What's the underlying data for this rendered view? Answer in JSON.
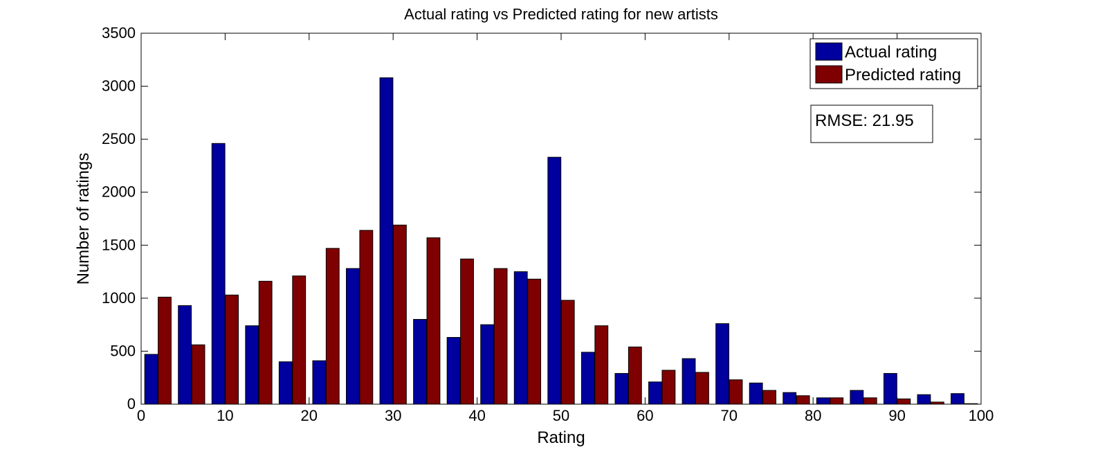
{
  "chart_data": {
    "type": "bar",
    "title": "Actual rating vs Predicted rating for new artists",
    "xlabel": "Rating",
    "ylabel": "Number of ratings",
    "xlim": [
      0,
      100
    ],
    "ylim": [
      0,
      3500
    ],
    "xticks": [
      0,
      10,
      20,
      30,
      40,
      50,
      60,
      70,
      80,
      90,
      100
    ],
    "yticks": [
      0,
      500,
      1000,
      1500,
      2000,
      2500,
      3000,
      3500
    ],
    "x": [
      2,
      6,
      10,
      14,
      18,
      22,
      26,
      30,
      34,
      38,
      42,
      46,
      50,
      54,
      58,
      62,
      66,
      70,
      74,
      78,
      82,
      86,
      90,
      94,
      98
    ],
    "series": [
      {
        "name": "Actual rating",
        "color": "#00009e",
        "values": [
          470,
          930,
          2460,
          740,
          400,
          410,
          1280,
          3080,
          800,
          630,
          750,
          1250,
          2330,
          490,
          290,
          210,
          430,
          760,
          200,
          110,
          60,
          130,
          290,
          90,
          100
        ]
      },
      {
        "name": "Predicted rating",
        "color": "#7f0000",
        "values": [
          1010,
          560,
          1030,
          1160,
          1210,
          1470,
          1640,
          1690,
          1570,
          1370,
          1280,
          1180,
          980,
          740,
          540,
          320,
          300,
          230,
          130,
          80,
          60,
          60,
          50,
          20,
          5
        ]
      }
    ],
    "legend_position": "top-right",
    "annotation": "RMSE: 21.95",
    "grid": false
  }
}
